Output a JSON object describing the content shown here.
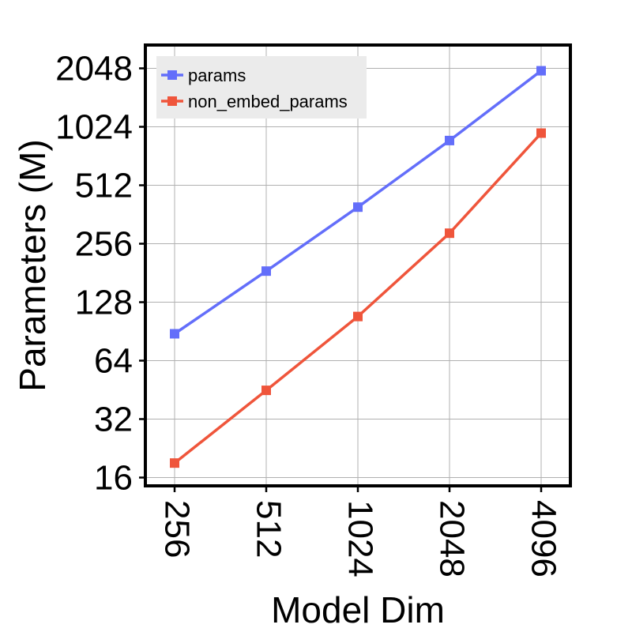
{
  "chart_data": {
    "type": "line",
    "xlabel": "Model Dim",
    "ylabel": "Parameters (M)",
    "x_scale": "categorical",
    "y_scale": "log2",
    "categories": [
      "256",
      "512",
      "1024",
      "2048",
      "4096"
    ],
    "y_ticks": [
      16,
      32,
      64,
      128,
      256,
      512,
      1024,
      2048
    ],
    "y_tick_labels": [
      "16",
      "32",
      "64",
      "128",
      "256",
      "512",
      "1024",
      "2048"
    ],
    "ylim": [
      14.5,
      2700
    ],
    "grid": true,
    "legend_position": "top-left",
    "series": [
      {
        "name": "params",
        "color": "#636efa",
        "marker": "square",
        "values": [
          88,
          185,
          395,
          870,
          1990
        ]
      },
      {
        "name": "non_embed_params",
        "color": "#ef553b",
        "marker": "square",
        "values": [
          19,
          45,
          108,
          290,
          950
        ]
      }
    ]
  }
}
